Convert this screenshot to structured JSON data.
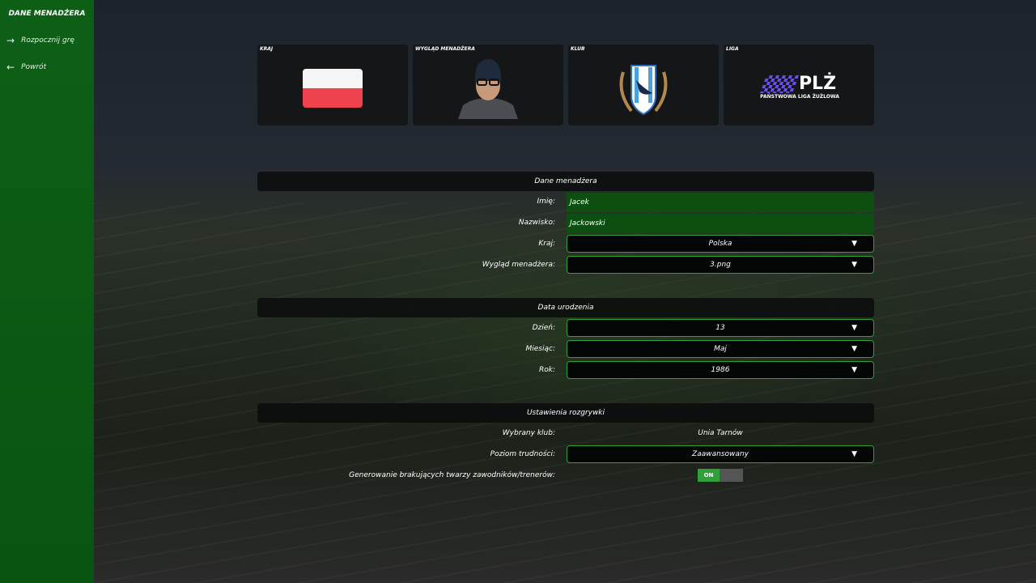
{
  "sidebar": {
    "title": "DANE MENADŻERA",
    "items": [
      {
        "label": "Rozpocznij grę",
        "icon": "arrow-right-icon"
      },
      {
        "label": "Powrót",
        "icon": "arrow-left-icon"
      }
    ]
  },
  "cards": {
    "country": "KRAJ",
    "appearance": "WYGLĄD MENADŻERA",
    "club": "KLUB",
    "league": "LIGA",
    "league_logo": "PLŻ",
    "league_full": "PAŃSTWOWA LIGA ŻUŻLOWA"
  },
  "manager": {
    "header": "Dane menadżera",
    "first_name_label": "Imię:",
    "first_name": "Jacek",
    "last_name_label": "Nazwisko:",
    "last_name": "Jackowski",
    "country_label": "Kraj:",
    "country": "Polska",
    "appearance_label": "Wygląd menadżera:",
    "appearance": "3.png"
  },
  "birth": {
    "header": "Data urodzenia",
    "day_label": "Dzień:",
    "day": "13",
    "month_label": "Miesiąc:",
    "month": "Maj",
    "year_label": "Rok:",
    "year": "1986"
  },
  "settings": {
    "header": "Ustawienia rozgrywki",
    "club_label": "Wybrany klub:",
    "club": "Unia Tarnów",
    "difficulty_label": "Poziom trudności:",
    "difficulty": "Zaawansowany",
    "faces_label": "Generowanie brakujących twarzy zawodników/trenerów:",
    "faces_toggle": "ON"
  },
  "colors": {
    "accent": "#2ea13a",
    "sidebar": "#0d5f16",
    "field": "#0c4f10"
  }
}
